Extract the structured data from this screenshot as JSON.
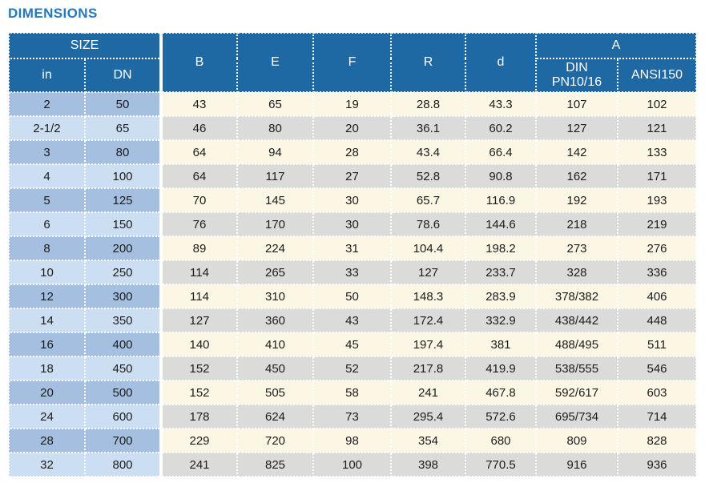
{
  "page": {
    "title": "DIMENSIONS"
  },
  "colors": {
    "title_text": "#2478BE",
    "header_bg": "#1E68A3",
    "header_text": "#FFFFFF",
    "size_cell_odd": "#A4BFDF",
    "size_cell_even": "#CCDEF1",
    "data_cell_odd": "#FBF7E4",
    "data_cell_even": "#DBDBD9",
    "cell_text": "#1C1C1C",
    "cell_border": "#FFFFFF"
  },
  "table": {
    "header": {
      "size_group": "SIZE",
      "size_sub": [
        "in",
        "DN"
      ],
      "mid_cols": [
        "B",
        "E",
        "F",
        "R",
        "d"
      ],
      "a_group": "A",
      "a_sub": [
        "DIN\nPN10/16",
        "ANSI150"
      ]
    },
    "rows": [
      [
        "2",
        "50",
        "43",
        "65",
        "19",
        "28.8",
        "43.3",
        "107",
        "102"
      ],
      [
        "2-1/2",
        "65",
        "46",
        "80",
        "20",
        "36.1",
        "60.2",
        "127",
        "121"
      ],
      [
        "3",
        "80",
        "64",
        "94",
        "28",
        "43.4",
        "66.4",
        "142",
        "133"
      ],
      [
        "4",
        "100",
        "64",
        "117",
        "27",
        "52.8",
        "90.8",
        "162",
        "171"
      ],
      [
        "5",
        "125",
        "70",
        "145",
        "30",
        "65.7",
        "116.9",
        "192",
        "193"
      ],
      [
        "6",
        "150",
        "76",
        "170",
        "30",
        "78.6",
        "144.6",
        "218",
        "219"
      ],
      [
        "8",
        "200",
        "89",
        "224",
        "31",
        "104.4",
        "198.2",
        "273",
        "276"
      ],
      [
        "10",
        "250",
        "114",
        "265",
        "33",
        "127",
        "233.7",
        "328",
        "336"
      ],
      [
        "12",
        "300",
        "114",
        "310",
        "50",
        "148.3",
        "283.9",
        "378/382",
        "406"
      ],
      [
        "14",
        "350",
        "127",
        "360",
        "43",
        "172.4",
        "332.9",
        "438/442",
        "448"
      ],
      [
        "16",
        "400",
        "140",
        "410",
        "45",
        "197.4",
        "381",
        "488/495",
        "511"
      ],
      [
        "18",
        "450",
        "152",
        "450",
        "52",
        "217.8",
        "419.9",
        "538/555",
        "546"
      ],
      [
        "20",
        "500",
        "152",
        "505",
        "58",
        "241",
        "467.8",
        "592/617",
        "603"
      ],
      [
        "24",
        "600",
        "178",
        "624",
        "73",
        "295.4",
        "572.6",
        "695/734",
        "714"
      ],
      [
        "28",
        "700",
        "229",
        "720",
        "98",
        "354",
        "680",
        "809",
        "828"
      ],
      [
        "32",
        "800",
        "241",
        "825",
        "100",
        "398",
        "770.5",
        "916",
        "936"
      ]
    ]
  }
}
